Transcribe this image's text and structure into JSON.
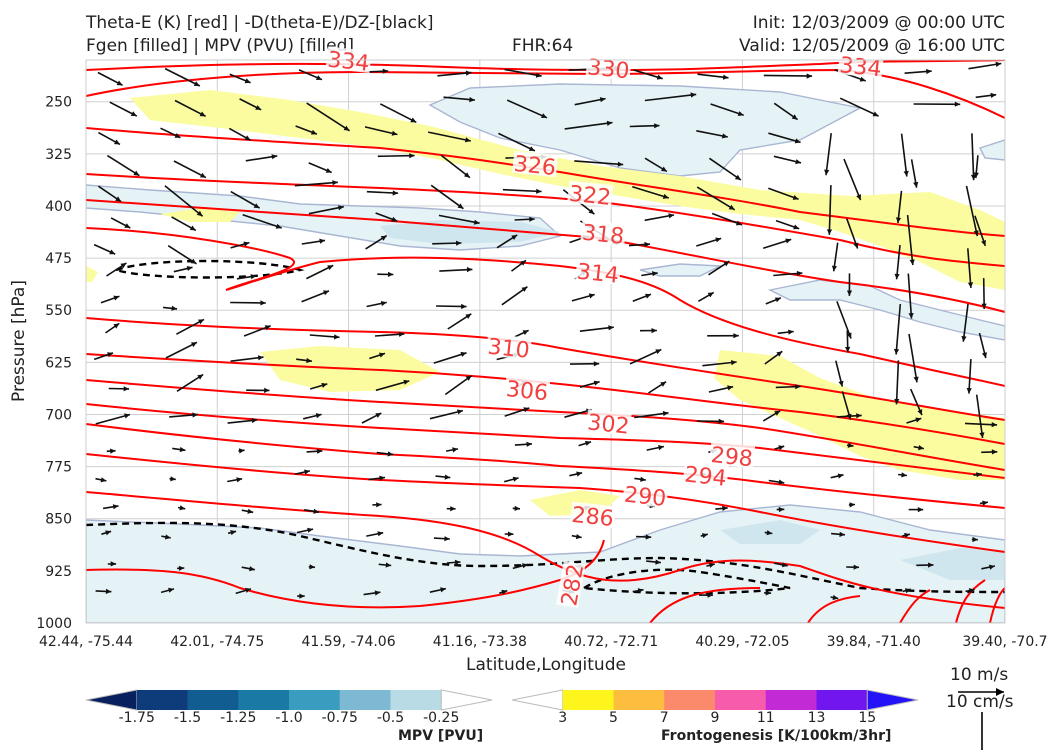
{
  "header": {
    "title_left_1": "Theta-E (K) [red] | -D(theta-E)/DZ-[black]",
    "title_left_2": "Fgen [filled] | MPV (PVU) [filled]",
    "fhr": "FHR:64",
    "init": "Init: 12/03/2009 @ 00:00 UTC",
    "valid": "Valid: 12/05/2009 @ 16:00 UTC"
  },
  "chart_data": {
    "type": "cross-section",
    "xlabel": "Latitude,Longitude",
    "ylabel": "Pressure [hPa]",
    "x_tick_labels": [
      "42.44, -75.44",
      "42.01, -74.75",
      "41.59, -74.06",
      "41.16, -73.38",
      "40.72, -72.71",
      "40.29, -72.05",
      "39.84, -71.40",
      "39.40, -70.7"
    ],
    "y_ticks": [
      250,
      325,
      400,
      475,
      550,
      625,
      700,
      775,
      850,
      925,
      1000
    ],
    "ylim": [
      1000,
      190
    ],
    "theta_e_contour_labels": [
      {
        "value": "334",
        "x_index": 2.0,
        "p": 191
      },
      {
        "value": "330",
        "x_index": 3.98,
        "p": 202
      },
      {
        "value": "334",
        "x_index": 5.9,
        "p": 199
      },
      {
        "value": "326",
        "x_index": 3.42,
        "p": 341
      },
      {
        "value": "322",
        "x_index": 3.84,
        "p": 384
      },
      {
        "value": "318",
        "x_index": 3.94,
        "p": 440
      },
      {
        "value": "314",
        "x_index": 3.9,
        "p": 496
      },
      {
        "value": "310",
        "x_index": 3.22,
        "p": 604
      },
      {
        "value": "306",
        "x_index": 3.36,
        "p": 665
      },
      {
        "value": "302",
        "x_index": 3.98,
        "p": 713
      },
      {
        "value": "298",
        "x_index": 4.92,
        "p": 760
      },
      {
        "value": "294",
        "x_index": 4.72,
        "p": 788
      },
      {
        "value": "290",
        "x_index": 4.26,
        "p": 817
      },
      {
        "value": "286",
        "x_index": 3.86,
        "p": 846
      },
      {
        "value": "282",
        "x_index": 3.7,
        "p": 945
      }
    ],
    "dtheta_dz_contour": "dashed black, enclosed regions near 500 hPa (left) and 900-950 hPa (bottom)",
    "grid": true
  },
  "colorbars": {
    "mpv": {
      "label": "MPV [PVU]",
      "ticks": [
        "-1.75",
        "-1.5",
        "-1.25",
        "-1.0",
        "-0.75",
        "-0.5",
        "-0.25"
      ],
      "colors": [
        "#08215e",
        "#0e3b7a",
        "#115c90",
        "#1a7aa5",
        "#3a9cbf",
        "#7db9d3",
        "#b9dbe6",
        "#ffffff"
      ]
    },
    "fgen": {
      "label": "Frontogenesis [K/100km/3hr]",
      "ticks": [
        "3",
        "5",
        "7",
        "9",
        "11",
        "13",
        "15"
      ],
      "colors": [
        "#ffffff",
        "#fdf51c",
        "#fdbd3e",
        "#fb8a6c",
        "#f75bab",
        "#c12ad4",
        "#7216f0",
        "#2413f6"
      ]
    }
  },
  "wind_key": {
    "label_1": "10 m/s",
    "label_2": "10 cm/s"
  },
  "colors": {
    "theta_e": "#ff0000",
    "dtheta": "#000000",
    "mpv_fill": "#e6f3f6",
    "fgen_fill": "#fbfca0",
    "grid": "#d0d0d0"
  }
}
